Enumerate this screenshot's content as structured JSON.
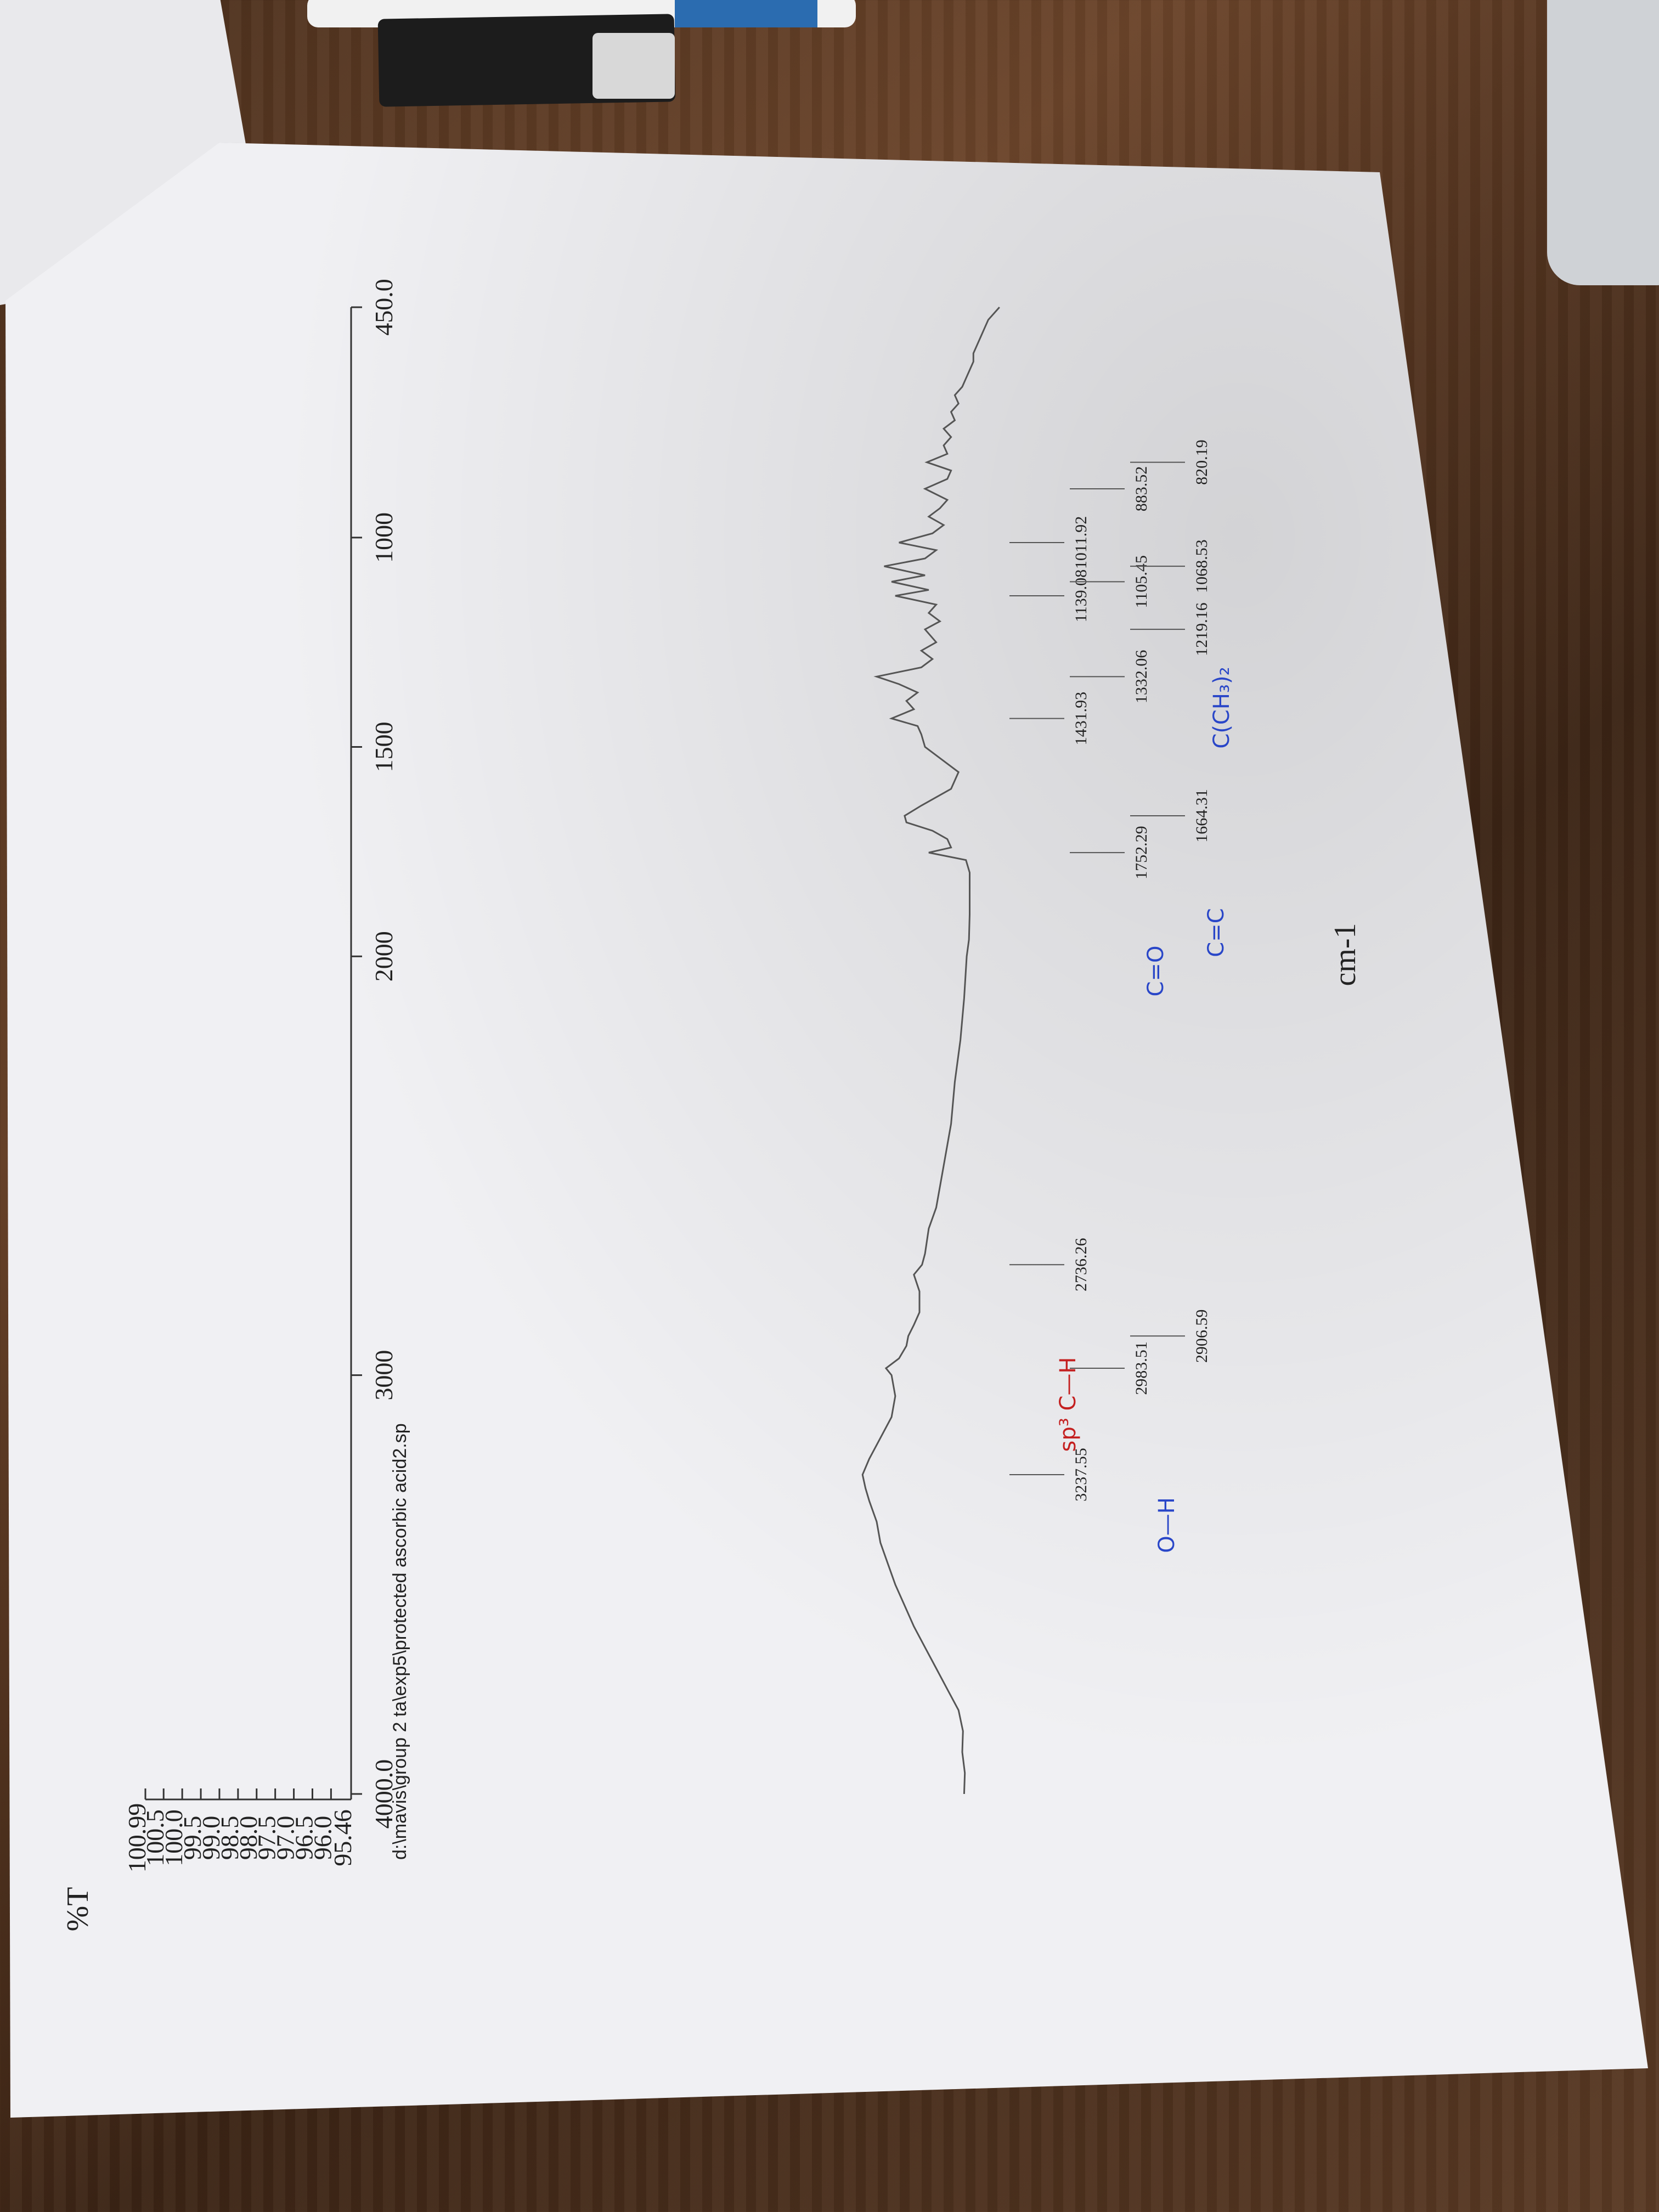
{
  "chart_data": {
    "type": "line",
    "ylabel": "%T",
    "xlabel": "cm-1",
    "xlim": [
      4000.0,
      450.0
    ],
    "ylim": [
      95.46,
      100.99
    ],
    "x_tick_labels": [
      "4000.0",
      "3000",
      "2000",
      "1500",
      "1000",
      "450.0"
    ],
    "y_tick_labels": [
      "95.46",
      "96.0",
      "96.5",
      "97.0",
      "97.5",
      "98.0",
      "98.5",
      "99.0",
      "99.5",
      "100.0",
      "100.5",
      "100.99"
    ],
    "file_label": "d:\\mavis\\group 2 ta\\exp5\\protected ascorbic acid2.sp",
    "series": [
      {
        "x": [
          4000,
          3950,
          3900,
          3850,
          3800,
          3750,
          3700,
          3650,
          3600,
          3550,
          3500,
          3450,
          3400,
          3350,
          3300,
          3270,
          3237.55,
          3200,
          3150,
          3100,
          3050,
          3000,
          2983.51,
          2960,
          2930,
          2906.59,
          2880,
          2850,
          2800,
          2760,
          2736.26,
          2710,
          2650,
          2600,
          2500,
          2400,
          2300,
          2200,
          2100,
          2000,
          1960,
          1900,
          1850,
          1800,
          1770,
          1752.29,
          1740,
          1720,
          1700,
          1680,
          1664.31,
          1640,
          1600,
          1560,
          1520,
          1500,
          1470,
          1450,
          1431.93,
          1410,
          1390,
          1370,
          1350,
          1332.06,
          1310,
          1290,
          1270,
          1250,
          1219.16,
          1200,
          1180,
          1160,
          1139.08,
          1125,
          1105.45,
          1090,
          1068.53,
          1050,
          1030,
          1011.92,
          990,
          970,
          950,
          930,
          910,
          883.52,
          860,
          840,
          820.19,
          800,
          780,
          760,
          740,
          720,
          700,
          680,
          660,
          640,
          620,
          600,
          580,
          560,
          540,
          520,
          500,
          480,
          460,
          450
        ],
        "y": [
          99.55,
          99.57,
          99.5,
          99.52,
          99.4,
          99.1,
          98.8,
          98.5,
          98.2,
          97.95,
          97.7,
          97.5,
          97.3,
          97.2,
          97.0,
          96.9,
          96.82,
          97.0,
          97.3,
          97.6,
          97.7,
          97.6,
          97.45,
          97.8,
          98.0,
          98.05,
          98.2,
          98.35,
          98.35,
          98.2,
          98.42,
          98.5,
          98.6,
          98.8,
          99.0,
          99.2,
          99.3,
          99.45,
          99.55,
          99.62,
          99.68,
          99.7,
          99.7,
          99.7,
          99.6,
          98.6,
          99.2,
          99.1,
          98.7,
          98.0,
          97.95,
          98.4,
          99.2,
          99.4,
          98.8,
          98.5,
          98.4,
          98.3,
          97.6,
          98.2,
          98.0,
          98.3,
          97.8,
          97.2,
          98.4,
          98.7,
          98.4,
          98.8,
          98.5,
          98.9,
          98.6,
          98.8,
          97.7,
          98.6,
          97.6,
          98.5,
          97.4,
          98.5,
          98.8,
          97.8,
          98.7,
          99.0,
          98.6,
          98.9,
          99.1,
          98.5,
          99.1,
          99.2,
          98.55,
          99.1,
          99.0,
          99.2,
          99.0,
          99.3,
          99.2,
          99.4,
          99.3,
          99.5,
          99.6,
          99.7,
          99.8,
          99.8,
          99.9,
          100.0,
          100.1,
          100.2,
          100.4,
          100.5
        ]
      }
    ],
    "peaks": [
      {
        "wavenumber": 3237.55,
        "label": "3237.55"
      },
      {
        "wavenumber": 2983.51,
        "label": "2983.51"
      },
      {
        "wavenumber": 2906.59,
        "label": "2906.59"
      },
      {
        "wavenumber": 2736.26,
        "label": "2736.26"
      },
      {
        "wavenumber": 1752.29,
        "label": "1752.29"
      },
      {
        "wavenumber": 1664.31,
        "label": "1664.31"
      },
      {
        "wavenumber": 1431.93,
        "label": "1431.93"
      },
      {
        "wavenumber": 1332.06,
        "label": "1332.06"
      },
      {
        "wavenumber": 1219.16,
        "label": "1219.16"
      },
      {
        "wavenumber": 1139.08,
        "label": "1139.08"
      },
      {
        "wavenumber": 1105.45,
        "label": "1105.45"
      },
      {
        "wavenumber": 1068.53,
        "label": "1068.53"
      },
      {
        "wavenumber": 1011.92,
        "label": "1011.92"
      },
      {
        "wavenumber": 883.52,
        "label": "883.52"
      },
      {
        "wavenumber": 820.19,
        "label": "820.19"
      }
    ],
    "handwritten_annotations": [
      {
        "text": "O—H",
        "color": "#2946c8"
      },
      {
        "text": "sp³ C—H",
        "color": "#c42020"
      },
      {
        "text": "C=O",
        "color": "#2946c8"
      },
      {
        "text": "C=C",
        "color": "#2946c8"
      },
      {
        "text": "C(CH₃)₂",
        "color": "#2946c8"
      }
    ]
  }
}
